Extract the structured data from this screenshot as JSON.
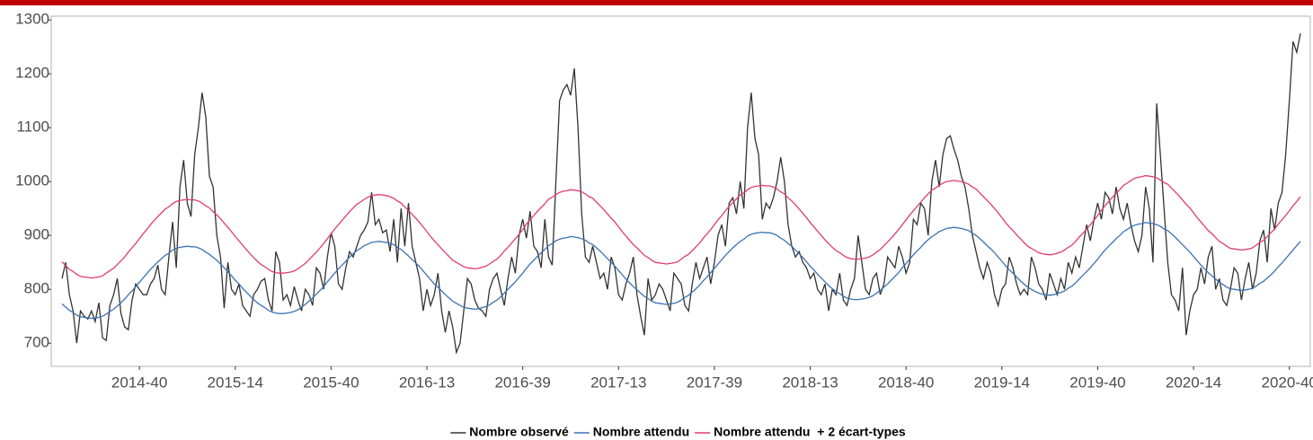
{
  "chart_data": {
    "type": "line",
    "legend": "bottom",
    "ylim": [
      657,
      1307
    ],
    "yticks": [
      700,
      800,
      900,
      1000,
      1100,
      1200,
      1300
    ],
    "categories": [
      null,
      null,
      null,
      null,
      null,
      null,
      null,
      null,
      null,
      null,
      null,
      null,
      null,
      null,
      null,
      null,
      null,
      null,
      null,
      null,
      null,
      "2014-40",
      null,
      null,
      null,
      null,
      null,
      null,
      null,
      null,
      null,
      null,
      null,
      null,
      null,
      null,
      null,
      null,
      null,
      null,
      null,
      null,
      null,
      null,
      null,
      null,
      null,
      "2015-14",
      null,
      null,
      null,
      null,
      null,
      null,
      null,
      null,
      null,
      null,
      null,
      null,
      null,
      null,
      null,
      null,
      null,
      null,
      null,
      null,
      null,
      null,
      null,
      null,
      null,
      "2015-40",
      null,
      null,
      null,
      null,
      null,
      null,
      null,
      null,
      null,
      null,
      null,
      null,
      null,
      null,
      null,
      null,
      null,
      null,
      null,
      null,
      null,
      null,
      null,
      null,
      null,
      "2016-13",
      null,
      null,
      null,
      null,
      null,
      null,
      null,
      null,
      null,
      null,
      null,
      null,
      null,
      null,
      null,
      null,
      null,
      null,
      null,
      null,
      null,
      null,
      null,
      null,
      null,
      "2016-39",
      null,
      null,
      null,
      null,
      null,
      null,
      null,
      null,
      null,
      null,
      null,
      null,
      null,
      null,
      null,
      null,
      null,
      null,
      null,
      null,
      null,
      null,
      null,
      null,
      null,
      "2017-13",
      null,
      null,
      null,
      null,
      null,
      null,
      null,
      null,
      null,
      null,
      null,
      null,
      null,
      null,
      null,
      null,
      null,
      null,
      null,
      null,
      null,
      null,
      null,
      null,
      null,
      "2017-39",
      null,
      null,
      null,
      null,
      null,
      null,
      null,
      null,
      null,
      null,
      null,
      null,
      null,
      null,
      null,
      null,
      null,
      null,
      null,
      null,
      null,
      null,
      null,
      null,
      null,
      "2018-13",
      null,
      null,
      null,
      null,
      null,
      null,
      null,
      null,
      null,
      null,
      null,
      null,
      null,
      null,
      null,
      null,
      null,
      null,
      null,
      null,
      null,
      null,
      null,
      null,
      null,
      "2018-40",
      null,
      null,
      null,
      null,
      null,
      null,
      null,
      null,
      null,
      null,
      null,
      null,
      null,
      null,
      null,
      null,
      null,
      null,
      null,
      null,
      null,
      null,
      null,
      null,
      null,
      "2019-14",
      null,
      null,
      null,
      null,
      null,
      null,
      null,
      null,
      null,
      null,
      null,
      null,
      null,
      null,
      null,
      null,
      null,
      null,
      null,
      null,
      null,
      null,
      null,
      null,
      null,
      "2019-40",
      null,
      null,
      null,
      null,
      null,
      null,
      null,
      null,
      null,
      null,
      null,
      null,
      null,
      null,
      null,
      null,
      null,
      null,
      null,
      null,
      null,
      null,
      null,
      null,
      null,
      "2020-14",
      null,
      null,
      null,
      null,
      null,
      null,
      null,
      null,
      null,
      null,
      null,
      null,
      null,
      null,
      null,
      null,
      null,
      null,
      null,
      null,
      null,
      null,
      null,
      null,
      null,
      "2020-40",
      null,
      null,
      null
    ],
    "series": [
      {
        "name": "Nombre observé",
        "color": "#333333",
        "values": [
          820,
          850,
          790,
          760,
          700,
          760,
          750,
          745,
          760,
          740,
          775,
          710,
          705,
          770,
          790,
          820,
          755,
          730,
          725,
          780,
          810,
          800,
          790,
          790,
          810,
          820,
          845,
          800,
          790,
          860,
          925,
          840,
          990,
          1040,
          960,
          935,
          1050,
          1100,
          1165,
          1120,
          1010,
          990,
          900,
          860,
          765,
          850,
          800,
          790,
          810,
          770,
          760,
          750,
          790,
          800,
          815,
          820,
          780,
          760,
          870,
          850,
          780,
          790,
          770,
          805,
          780,
          760,
          800,
          790,
          770,
          840,
          830,
          800,
          860,
          905,
          880,
          810,
          800,
          840,
          870,
          860,
          880,
          900,
          910,
          925,
          980,
          920,
          930,
          905,
          910,
          870,
          930,
          850,
          950,
          880,
          960,
          880,
          850,
          820,
          760,
          800,
          770,
          790,
          830,
          760,
          720,
          760,
          730,
          683,
          700,
          760,
          820,
          810,
          780,
          765,
          760,
          750,
          800,
          820,
          830,
          800,
          770,
          820,
          860,
          830,
          900,
          930,
          895,
          945,
          880,
          870,
          840,
          930,
          860,
          845,
          1000,
          1150,
          1170,
          1180,
          1160,
          1210,
          1100,
          940,
          860,
          850,
          880,
          850,
          820,
          830,
          800,
          860,
          840,
          790,
          780,
          810,
          830,
          860,
          790,
          750,
          715,
          820,
          780,
          790,
          810,
          800,
          780,
          760,
          830,
          820,
          810,
          770,
          760,
          810,
          850,
          820,
          840,
          860,
          810,
          850,
          900,
          920,
          880,
          960,
          970,
          940,
          1000,
          950,
          1100,
          1165,
          1080,
          1050,
          930,
          960,
          950,
          970,
          1000,
          1045,
          1000,
          920,
          880,
          860,
          870,
          850,
          840,
          820,
          830,
          800,
          790,
          810,
          760,
          800,
          790,
          830,
          780,
          770,
          800,
          820,
          900,
          850,
          800,
          790,
          820,
          830,
          790,
          810,
          860,
          850,
          840,
          880,
          860,
          830,
          850,
          930,
          920,
          960,
          950,
          900,
          1000,
          1040,
          990,
          1050,
          1080,
          1085,
          1060,
          1040,
          1010,
          990,
          950,
          900,
          870,
          840,
          820,
          850,
          830,
          790,
          770,
          800,
          810,
          860,
          840,
          810,
          790,
          800,
          790,
          860,
          840,
          810,
          800,
          780,
          830,
          810,
          790,
          820,
          800,
          850,
          830,
          860,
          840,
          880,
          920,
          890,
          930,
          960,
          930,
          980,
          970,
          940,
          990,
          950,
          930,
          960,
          920,
          890,
          870,
          900,
          990,
          950,
          850,
          1145,
          1050,
          950,
          850,
          790,
          780,
          760,
          840,
          715,
          760,
          790,
          800,
          840,
          810,
          860,
          880,
          800,
          820,
          780,
          770,
          800,
          840,
          830,
          780,
          820,
          850,
          800,
          830,
          890,
          910,
          850,
          950,
          910,
          960,
          980,
          1050,
          1150,
          1260,
          1240,
          1275
        ]
      },
      {
        "name": "Nombre attendu",
        "color": "#3b72b4",
        "values": [
          773,
          767,
          761,
          757,
          752,
          749,
          748,
          747,
          746,
          747,
          748,
          750,
          754,
          759,
          763,
          769,
          775,
          782,
          790,
          797,
          805,
          813,
          821,
          829,
          837,
          844,
          851,
          857,
          863,
          867,
          873,
          876,
          878,
          879,
          880,
          879,
          879,
          877,
          874,
          869,
          865,
          859,
          854,
          847,
          840,
          833,
          825,
          817,
          810,
          802,
          795,
          788,
          781,
          775,
          770,
          766,
          761,
          758,
          756,
          755,
          755,
          756,
          757,
          759,
          762,
          767,
          772,
          778,
          784,
          791,
          798,
          805,
          814,
          822,
          830,
          838,
          845,
          852,
          860,
          866,
          872,
          876,
          881,
          884,
          887,
          888,
          889,
          888,
          887,
          885,
          883,
          878,
          874,
          868,
          862,
          855,
          849,
          842,
          834,
          826,
          818,
          810,
          804,
          797,
          790,
          784,
          778,
          774,
          770,
          767,
          765,
          764,
          763,
          764,
          766,
          768,
          771,
          776,
          780,
          786,
          793,
          800,
          807,
          814,
          822,
          830,
          839,
          847,
          854,
          861,
          868,
          874,
          881,
          885,
          890,
          893,
          895,
          896,
          898,
          897,
          896,
          894,
          891,
          886,
          883,
          877,
          871,
          864,
          857,
          850,
          843,
          835,
          827,
          819,
          812,
          805,
          799,
          793,
          787,
          783,
          778,
          775,
          774,
          773,
          772,
          773,
          774,
          776,
          780,
          785,
          789,
          795,
          801,
          808,
          816,
          823,
          831,
          839,
          847,
          855,
          863,
          870,
          877,
          883,
          889,
          893,
          899,
          902,
          904,
          905,
          906,
          905,
          905,
          903,
          900,
          895,
          891,
          885,
          880,
          873,
          866,
          859,
          851,
          843,
          836,
          828,
          821,
          814,
          807,
          801,
          796,
          792,
          787,
          784,
          782,
          781,
          781,
          782,
          783,
          785,
          788,
          793,
          798,
          804,
          810,
          817,
          824,
          831,
          840,
          848,
          856,
          864,
          871,
          878,
          886,
          892,
          898,
          902,
          907,
          910,
          913,
          914,
          915,
          914,
          913,
          911,
          909,
          904,
          900,
          894,
          888,
          881,
          875,
          868,
          860,
          852,
          844,
          836,
          830,
          823,
          816,
          810,
          804,
          800,
          796,
          793,
          791,
          790,
          789,
          790,
          792,
          794,
          797,
          802,
          806,
          812,
          819,
          826,
          833,
          840,
          848,
          856,
          865,
          873,
          880,
          887,
          894,
          900,
          907,
          911,
          916,
          919,
          921,
          922,
          924,
          923,
          922,
          920,
          917,
          912,
          909,
          903,
          897,
          890,
          883,
          876,
          869,
          861,
          853,
          845,
          838,
          831,
          825,
          819,
          813,
          809,
          804,
          801,
          800,
          799,
          798,
          799,
          800,
          802,
          806,
          811,
          815,
          821,
          827,
          834,
          842,
          849,
          857,
          865,
          873,
          881,
          889
        ]
      },
      {
        "name": "Nombre attendu  + 2 écart-types",
        "color": "#e23a72",
        "values": [
          851,
          844,
          837,
          833,
          828,
          824,
          823,
          822,
          821,
          822,
          823,
          825,
          830,
          835,
          839,
          846,
          853,
          860,
          869,
          877,
          885,
          894,
          903,
          911,
          920,
          928,
          935,
          942,
          949,
          953,
          959,
          963,
          965,
          966,
          967,
          966,
          966,
          964,
          960,
          955,
          951,
          944,
          938,
          931,
          923,
          915,
          907,
          898,
          890,
          882,
          874,
          866,
          859,
          852,
          846,
          842,
          837,
          833,
          831,
          830,
          830,
          831,
          832,
          834,
          838,
          843,
          848,
          855,
          862,
          869,
          877,
          885,
          894,
          903,
          912,
          920,
          928,
          936,
          944,
          951,
          958,
          962,
          967,
          971,
          974,
          975,
          976,
          975,
          974,
          972,
          969,
          964,
          960,
          953,
          946,
          939,
          932,
          924,
          916,
          907,
          898,
          890,
          883,
          875,
          868,
          861,
          854,
          850,
          846,
          842,
          840,
          839,
          838,
          839,
          841,
          843,
          847,
          852,
          856,
          863,
          871,
          878,
          886,
          894,
          902,
          911,
          921,
          929,
          937,
          945,
          952,
          959,
          967,
          971,
          976,
          980,
          982,
          983,
          985,
          984,
          983,
          981,
          977,
          972,
          969,
          962,
          955,
          948,
          940,
          932,
          925,
          916,
          907,
          899,
          891,
          883,
          877,
          870,
          863,
          859,
          854,
          850,
          849,
          848,
          847,
          848,
          849,
          851,
          856,
          861,
          865,
          872,
          879,
          886,
          895,
          903,
          911,
          920,
          929,
          937,
          946,
          954,
          961,
          968,
          975,
          979,
          985,
          989,
          991,
          992,
          993,
          992,
          992,
          990,
          986,
          981,
          977,
          970,
          964,
          957,
          949,
          941,
          933,
          924,
          916,
          908,
          900,
          892,
          885,
          878,
          872,
          868,
          863,
          859,
          857,
          856,
          856,
          857,
          858,
          860,
          864,
          869,
          874,
          881,
          888,
          895,
          903,
          911,
          920,
          929,
          938,
          946,
          954,
          962,
          970,
          977,
          984,
          988,
          993,
          997,
          1000,
          1001,
          1002,
          1001,
          1000,
          998,
          995,
          990,
          986,
          979,
          972,
          965,
          958,
          950,
          942,
          933,
          924,
          916,
          909,
          901,
          894,
          887,
          880,
          876,
          872,
          868,
          866,
          865,
          864,
          865,
          867,
          869,
          873,
          878,
          882,
          889,
          897,
          904,
          912,
          920,
          928,
          937,
          947,
          955,
          963,
          971,
          978,
          985,
          993,
          997,
          1002,
          1006,
          1008,
          1009,
          1011,
          1010,
          1009,
          1007,
          1003,
          998,
          995,
          988,
          981,
          974,
          966,
          958,
          951,
          942,
          933,
          925,
          917,
          909,
          903,
          896,
          889,
          885,
          880,
          876,
          875,
          874,
          873,
          874,
          875,
          877,
          882,
          887,
          891,
          898,
          905,
          912,
          921,
          929,
          937,
          946,
          955,
          963,
          972
        ]
      }
    ]
  }
}
